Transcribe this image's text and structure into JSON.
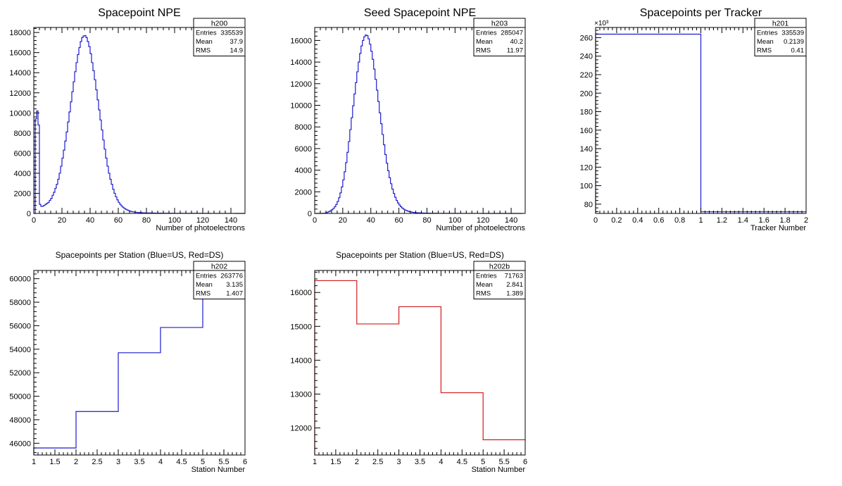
{
  "colors": {
    "blue": "#1c1cd0",
    "red": "#d01c1c",
    "axis": "#000000",
    "background": "#ffffff"
  },
  "chart_data": [
    {
      "id": "h200",
      "type": "histogram",
      "title": "Spacepoint NPE",
      "xlabel": "Number of photoelectrons",
      "ylabel": "",
      "xlim": [
        0,
        150
      ],
      "ylim": [
        0,
        18500
      ],
      "xticks": [
        0,
        20,
        40,
        60,
        80,
        100,
        120,
        140
      ],
      "yticks": [
        0,
        2000,
        4000,
        6000,
        8000,
        10000,
        12000,
        14000,
        16000,
        18000
      ],
      "color": "#1c1cd0",
      "bins": {
        "start": 0,
        "width": 1
      },
      "values": [
        0,
        9400,
        10200,
        8800,
        900,
        700,
        720,
        800,
        900,
        1000,
        1100,
        1300,
        1500,
        1800,
        2100,
        2500,
        2900,
        3400,
        4000,
        4700,
        5500,
        6300,
        7200,
        8100,
        9100,
        10100,
        11100,
        12100,
        13100,
        14100,
        15000,
        15800,
        16500,
        17100,
        17500,
        17650,
        17700,
        17500,
        17100,
        16600,
        15900,
        15000,
        14200,
        13300,
        12300,
        11300,
        10300,
        9300,
        8300,
        7300,
        6400,
        5500,
        4700,
        4000,
        3400,
        2900,
        2400,
        2000,
        1650,
        1350,
        1100,
        900,
        740,
        610,
        500,
        410,
        340,
        280,
        230,
        190,
        160,
        135,
        115,
        100,
        88,
        78,
        70,
        63,
        57,
        52,
        48,
        44,
        41,
        38,
        35,
        33,
        31,
        29,
        27,
        26,
        24,
        23,
        22,
        21,
        20,
        19,
        18,
        17,
        16,
        15,
        15,
        14,
        13,
        13,
        12,
        12,
        11,
        11,
        10,
        10,
        10,
        9,
        9,
        9,
        8,
        8,
        8,
        7,
        7,
        7,
        7,
        6,
        6,
        6,
        6,
        5,
        5,
        5,
        5,
        5,
        4,
        4,
        4,
        4,
        4,
        4,
        3,
        3,
        3,
        3,
        3,
        3,
        3,
        2,
        2,
        2,
        2,
        2,
        2,
        2
      ],
      "stats": {
        "name": "h200",
        "rows": [
          [
            "Entries",
            "335539"
          ],
          [
            "Mean",
            "37.9"
          ],
          [
            "RMS",
            "14.9"
          ]
        ]
      }
    },
    {
      "id": "h203",
      "type": "histogram",
      "title": "Seed Spacepoint NPE",
      "xlabel": "Number of photoelectrons",
      "ylabel": "",
      "xlim": [
        0,
        150
      ],
      "ylim": [
        0,
        17200
      ],
      "xticks": [
        0,
        20,
        40,
        60,
        80,
        100,
        120,
        140
      ],
      "yticks": [
        0,
        2000,
        4000,
        6000,
        8000,
        10000,
        12000,
        14000,
        16000
      ],
      "color": "#1c1cd0",
      "bins": {
        "start": 0,
        "width": 1
      },
      "values": [
        0,
        0,
        0,
        0,
        0,
        0,
        10,
        30,
        70,
        120,
        180,
        250,
        340,
        460,
        620,
        830,
        1100,
        1450,
        1900,
        2450,
        3100,
        3850,
        4700,
        5650,
        6650,
        7750,
        8850,
        9950,
        11050,
        12100,
        13100,
        14000,
        14800,
        15500,
        16000,
        16350,
        16500,
        16450,
        16150,
        15650,
        15000,
        14250,
        13350,
        12400,
        11400,
        10350,
        9300,
        8300,
        7300,
        6350,
        5450,
        4650,
        3950,
        3300,
        2750,
        2250,
        1850,
        1500,
        1200,
        970,
        780,
        620,
        500,
        400,
        320,
        260,
        210,
        170,
        140,
        115,
        95,
        80,
        68,
        58,
        50,
        44,
        39,
        35,
        31,
        28,
        25,
        23,
        21,
        19,
        17,
        16,
        15,
        14,
        13,
        12,
        11,
        10,
        10,
        9,
        9,
        8,
        8,
        7,
        7,
        7,
        6,
        6,
        6,
        5,
        5,
        5,
        5,
        4,
        4,
        4,
        4,
        4,
        3,
        3,
        3,
        3,
        3,
        3,
        3,
        2,
        2,
        2,
        2,
        2,
        2,
        2,
        2,
        2,
        2,
        1,
        1,
        1,
        1,
        1,
        1,
        1,
        1,
        1,
        1,
        1,
        1,
        1,
        1,
        1,
        1,
        1,
        1,
        1
      ],
      "stats": {
        "name": "h203",
        "rows": [
          [
            "Entries",
            "285047"
          ],
          [
            "Mean",
            "40.2"
          ],
          [
            "RMS",
            "11.97"
          ]
        ]
      }
    },
    {
      "id": "h201",
      "type": "histogram",
      "title": "Spacepoints per Tracker",
      "xlabel": "Tracker Number",
      "ylabel": "",
      "xlim": [
        0,
        2
      ],
      "ylim": [
        70,
        271
      ],
      "xticks": [
        0,
        0.2,
        0.4,
        0.6,
        0.8,
        1,
        1.2,
        1.4,
        1.6,
        1.8,
        2
      ],
      "yticks": [
        80,
        100,
        120,
        140,
        160,
        180,
        200,
        220,
        240,
        260
      ],
      "y_exponent": "×10³",
      "color": "#1c1cd0",
      "bins": {
        "edges": [
          0,
          1,
          2
        ]
      },
      "values": [
        263.776,
        71.763
      ],
      "stats": {
        "name": "h201",
        "rows": [
          [
            "Entries",
            "335539"
          ],
          [
            "Mean",
            "0.2139"
          ],
          [
            "RMS",
            "0.41"
          ]
        ]
      }
    },
    {
      "id": "h202",
      "type": "histogram",
      "title": "Spacepoints per Station (Blue=US, Red=DS)",
      "xlabel": "Station Number",
      "ylabel": "",
      "xlim": [
        1,
        6
      ],
      "ylim": [
        45000,
        60700
      ],
      "xticks": [
        1,
        1.5,
        2,
        2.5,
        3,
        3.5,
        4,
        4.5,
        5,
        5.5,
        6
      ],
      "yticks": [
        46000,
        48000,
        50000,
        52000,
        54000,
        56000,
        58000,
        60000
      ],
      "color": "#1c1cd0",
      "bins": {
        "edges": [
          1,
          2,
          3,
          4,
          5,
          6
        ]
      },
      "values": [
        45600,
        48700,
        53700,
        55850,
        59950
      ],
      "stats": {
        "name": "h202",
        "rows": [
          [
            "Entries",
            "263776"
          ],
          [
            "Mean",
            "3.135"
          ],
          [
            "RMS",
            "1.407"
          ]
        ]
      }
    },
    {
      "id": "h202b",
      "type": "histogram",
      "title": "Spacepoints per Station (Blue=US, Red=DS)",
      "xlabel": "Station Number",
      "ylabel": "",
      "xlim": [
        1,
        6
      ],
      "ylim": [
        11200,
        16650
      ],
      "xticks": [
        1,
        1.5,
        2,
        2.5,
        3,
        3.5,
        4,
        4.5,
        5,
        5.5,
        6
      ],
      "yticks": [
        12000,
        13000,
        14000,
        15000,
        16000
      ],
      "color": "#d01c1c",
      "bins": {
        "edges": [
          1,
          2,
          3,
          4,
          5,
          6
        ]
      },
      "values": [
        16350,
        15070,
        15580,
        13040,
        11650
      ],
      "stats": {
        "name": "h202b",
        "rows": [
          [
            "Entries",
            "71763"
          ],
          [
            "Mean",
            "2.841"
          ],
          [
            "RMS",
            "1.389"
          ]
        ]
      }
    }
  ]
}
